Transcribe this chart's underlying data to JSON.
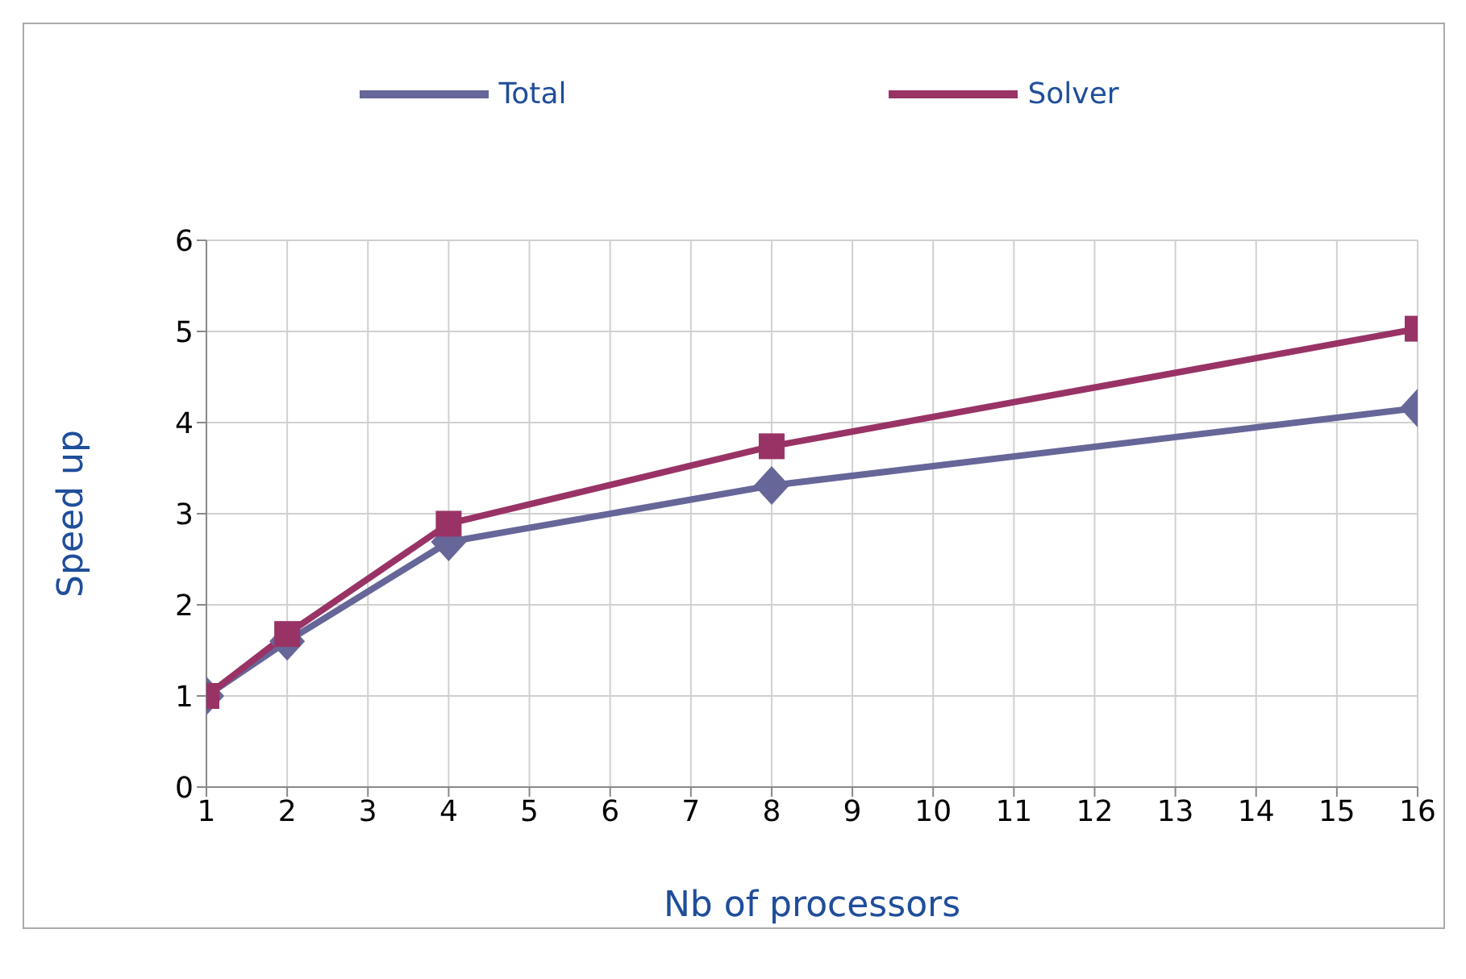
{
  "chart_data": {
    "type": "line",
    "xlabel": "Nb of processors",
    "ylabel": "Speed up",
    "x": [
      1,
      2,
      4,
      8,
      16
    ],
    "series": [
      {
        "name": "Total",
        "color": "#666699",
        "values": [
          1,
          1.6,
          2.69,
          3.31,
          4.16
        ],
        "marker": "diamond"
      },
      {
        "name": "Solver",
        "color": "#993366",
        "values": [
          1,
          1.68,
          2.89,
          3.74,
          5.03
        ],
        "marker": "square"
      }
    ],
    "xlim": [
      1,
      16
    ],
    "xticks": [
      1,
      2,
      3,
      4,
      5,
      6,
      7,
      8,
      9,
      10,
      11,
      12,
      13,
      14,
      15,
      16
    ],
    "ylim": [
      0,
      6
    ],
    "yticks": [
      0,
      1,
      2,
      3,
      4,
      5,
      6
    ],
    "grid": true,
    "legend": "top"
  }
}
